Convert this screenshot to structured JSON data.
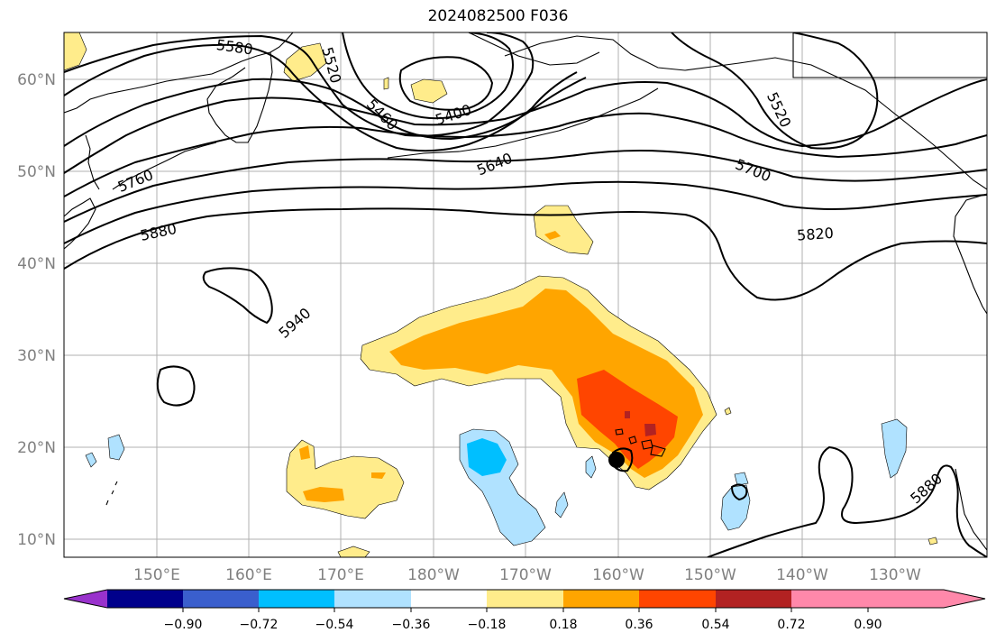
{
  "title": "2024082500 F036",
  "lat_labels": [
    "10°N",
    "20°N",
    "30°N",
    "40°N",
    "50°N",
    "60°N"
  ],
  "lon_labels": [
    "150°E",
    "160°E",
    "170°E",
    "180°W",
    "170°W",
    "160°W",
    "150°W",
    "140°W",
    "130°W"
  ],
  "colorbar": {
    "colors": [
      "#9932cc",
      "#00008b",
      "#3a5fcd",
      "#00bfff",
      "#b0e2ff",
      "#ffffff",
      "#ffec8b",
      "#ffa500",
      "#ff4500",
      "#b22222",
      "#ff88aa"
    ],
    "tick_labels": [
      "−0.90",
      "−0.72",
      "−0.54",
      "−0.36",
      "−0.18",
      "0.18",
      "0.36",
      "0.54",
      "0.72",
      "0.90"
    ]
  },
  "contour_labels": [
    "5580",
    "5520",
    "5400",
    "5460",
    "5640",
    "5520",
    "5700",
    "5760",
    "5880",
    "5820",
    "5940",
    "5880"
  ]
}
